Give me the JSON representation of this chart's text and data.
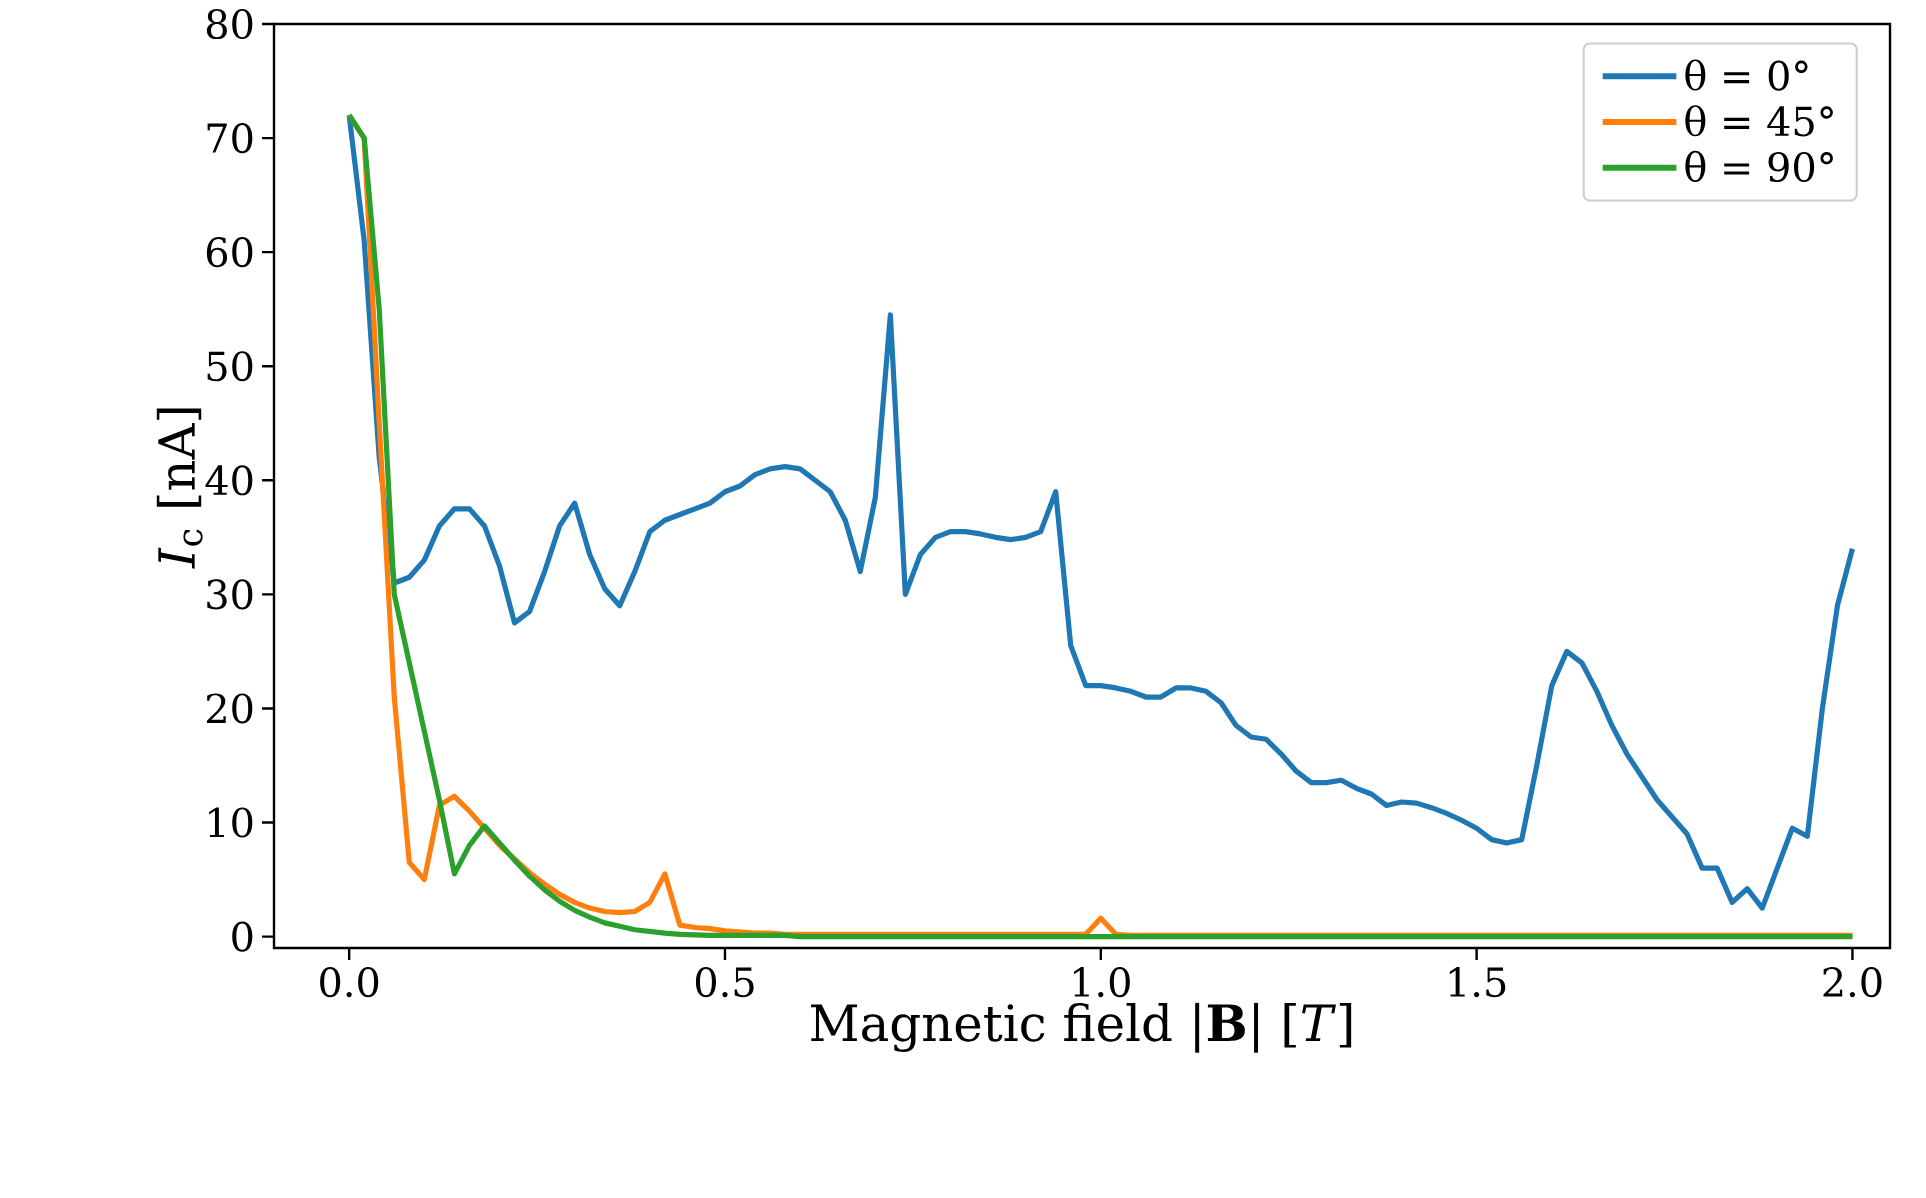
{
  "chart_data": {
    "type": "line",
    "xlabel": "Magnetic field |**B**| [*T*]",
    "ylabel": "*I*$_{c}$ [nA]",
    "x": [
      0,
      0.02,
      0.04,
      0.06,
      0.08,
      0.1,
      0.12,
      0.14,
      0.16,
      0.18,
      0.2,
      0.22,
      0.24,
      0.26,
      0.28,
      0.3,
      0.32,
      0.34,
      0.36,
      0.38,
      0.4,
      0.42,
      0.44,
      0.46,
      0.48,
      0.5,
      0.52,
      0.54,
      0.56,
      0.58,
      0.6,
      0.62,
      0.64,
      0.66,
      0.68,
      0.7,
      0.72,
      0.74,
      0.76,
      0.78,
      0.8,
      0.82,
      0.84,
      0.86,
      0.88,
      0.9,
      0.92,
      0.94,
      0.96,
      0.98,
      1.0,
      1.02,
      1.04,
      1.06,
      1.08,
      1.1,
      1.12,
      1.14,
      1.16,
      1.18,
      1.2,
      1.22,
      1.24,
      1.26,
      1.28,
      1.3,
      1.32,
      1.34,
      1.36,
      1.38,
      1.4,
      1.42,
      1.44,
      1.46,
      1.48,
      1.5,
      1.52,
      1.54,
      1.56,
      1.58,
      1.6,
      1.62,
      1.64,
      1.66,
      1.68,
      1.7,
      1.72,
      1.74,
      1.76,
      1.78,
      1.8,
      1.82,
      1.84,
      1.86,
      1.88,
      1.9,
      1.92,
      1.94,
      1.96,
      1.98,
      2.0
    ],
    "series": [
      {
        "name": "θ = 0°",
        "color": "#1f77b4",
        "values": [
          72,
          61,
          42,
          31,
          31.5,
          33,
          36,
          37.5,
          37.5,
          36,
          32.5,
          27.5,
          28.5,
          32,
          36,
          38,
          33.5,
          30.5,
          29,
          32,
          35.5,
          36.5,
          37,
          37.5,
          38,
          39,
          39.5,
          40.5,
          41,
          41.2,
          41,
          40,
          39,
          36.5,
          32,
          38.5,
          54.5,
          30,
          33.5,
          35,
          35.5,
          35.5,
          35.3,
          35,
          34.8,
          35,
          35.5,
          39,
          25.5,
          22,
          22,
          21.8,
          21.5,
          21,
          21,
          21.8,
          21.8,
          21.5,
          20.5,
          18.5,
          17.5,
          17.3,
          16,
          14.5,
          13.5,
          13.5,
          13.7,
          13,
          12.5,
          11.5,
          11.8,
          11.7,
          11.3,
          10.8,
          10.2,
          9.5,
          8.5,
          8.2,
          8.5,
          15,
          22,
          25,
          24,
          21.5,
          18.5,
          16,
          14,
          12,
          10.5,
          9,
          6,
          6,
          3,
          4.2,
          2.5,
          6,
          9.5,
          8.8,
          20,
          29,
          34
        ]
      },
      {
        "name": "θ = 45°",
        "color": "#ff7f0e",
        "values": [
          72,
          70,
          45,
          21,
          6.5,
          5,
          11.5,
          12.3,
          11,
          9.5,
          8,
          6.8,
          5.6,
          4.6,
          3.7,
          3,
          2.5,
          2.2,
          2.1,
          2.2,
          3,
          5.5,
          1,
          0.8,
          0.7,
          0.5,
          0.4,
          0.3,
          0.3,
          0.2,
          0.2,
          0.2,
          0.2,
          0.2,
          0.2,
          0.2,
          0.2,
          0.2,
          0.2,
          0.2,
          0.2,
          0.2,
          0.2,
          0.2,
          0.2,
          0.2,
          0.2,
          0.2,
          0.2,
          0.2,
          1.6,
          0.2,
          0.1,
          0.1,
          0.1,
          0.1,
          0.1,
          0.1,
          0.1,
          0.1,
          0.1,
          0.1,
          0.1,
          0.1,
          0.1,
          0.1,
          0.1,
          0.1,
          0.1,
          0.1,
          0.1,
          0.1,
          0.1,
          0.1,
          0.1,
          0.1,
          0.1,
          0.1,
          0.1,
          0.1,
          0.1,
          0.1,
          0.1,
          0.1,
          0.1,
          0.1,
          0.1,
          0.1,
          0.1,
          0.1,
          0.1,
          0.1,
          0.1,
          0.1,
          0.1,
          0.1,
          0.1,
          0.1,
          0.1,
          0.1,
          0.1
        ]
      },
      {
        "name": "θ = 90°",
        "color": "#2ca02c",
        "values": [
          72,
          70,
          55,
          30,
          24,
          18,
          12,
          5.5,
          8,
          9.7,
          8.2,
          6.7,
          5.3,
          4.1,
          3.1,
          2.3,
          1.7,
          1.2,
          0.9,
          0.6,
          0.45,
          0.3,
          0.2,
          0.15,
          0.1,
          0.1,
          0.1,
          0.1,
          0.1,
          0.1,
          0,
          0,
          0,
          0,
          0,
          0,
          0,
          0,
          0,
          0,
          0,
          0,
          0,
          0,
          0,
          0,
          0,
          0,
          0,
          0,
          0,
          0,
          0,
          0,
          0,
          0,
          0,
          0,
          0,
          0,
          0,
          0,
          0,
          0,
          0,
          0,
          0,
          0,
          0,
          0,
          0,
          0,
          0,
          0,
          0,
          0,
          0,
          0,
          0,
          0,
          0,
          0,
          0,
          0,
          0,
          0,
          0,
          0,
          0,
          0,
          0,
          0,
          0,
          0,
          0,
          0,
          0,
          0,
          0,
          0,
          0
        ]
      }
    ],
    "xlim": [
      -0.1,
      2.05
    ],
    "ylim": [
      -1,
      80
    ],
    "xticks": [
      {
        "value": 0,
        "label": "0.0"
      },
      {
        "value": 0.5,
        "label": "0.5"
      },
      {
        "value": 1,
        "label": "1.0"
      },
      {
        "value": 1.5,
        "label": "1.5"
      },
      {
        "value": 2,
        "label": "2.0"
      }
    ],
    "yticks": [
      0,
      10,
      20,
      30,
      40,
      50,
      60,
      70,
      80
    ],
    "legend": "top right",
    "grid": false,
    "marker": "none",
    "line_style": "solid"
  }
}
